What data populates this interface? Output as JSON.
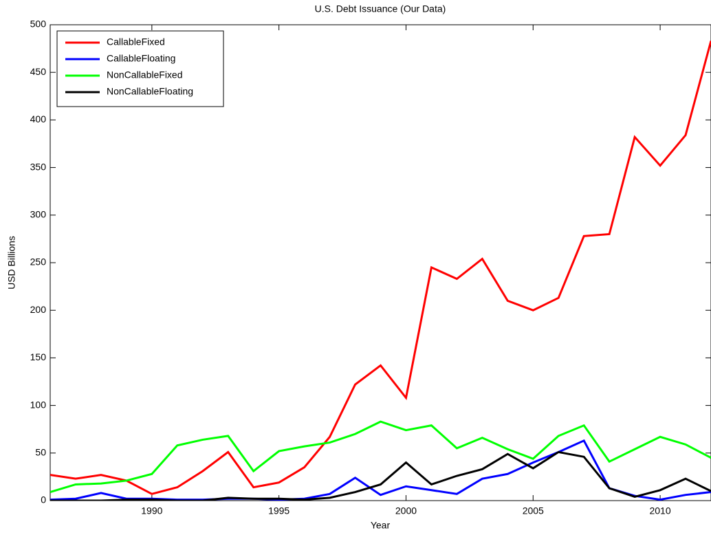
{
  "chart_data": {
    "type": "line",
    "title": "U.S. Debt Issuance (Our Data)",
    "x_label": "Year",
    "y_label": "USD Billions",
    "x": [
      1986,
      1987,
      1988,
      1989,
      1990,
      1991,
      1992,
      1993,
      1994,
      1995,
      1996,
      1997,
      1998,
      1999,
      2000,
      2001,
      2002,
      2003,
      2004,
      2005,
      2006,
      2007,
      2008,
      2009,
      2010,
      2011,
      2012
    ],
    "series": [
      {
        "name": "CallableFixed",
        "color": "#ff0000",
        "values": [
          27,
          23,
          27,
          21,
          7,
          14,
          31,
          51,
          14,
          19,
          35,
          67,
          122,
          142,
          108,
          245,
          233,
          254,
          210,
          200,
          213,
          278,
          280,
          382,
          352,
          384,
          483
        ]
      },
      {
        "name": "CallableFloating",
        "color": "#0000ff",
        "values": [
          1,
          2,
          8,
          2,
          2,
          1,
          1,
          2,
          2,
          1,
          2,
          7,
          24,
          6,
          15,
          11,
          7,
          23,
          28,
          40,
          51,
          63,
          13,
          5,
          1,
          6,
          9
        ]
      },
      {
        "name": "NonCallableFixed",
        "color": "#00ff00",
        "values": [
          9,
          17,
          18,
          21,
          28,
          58,
          64,
          68,
          31,
          52,
          57,
          61,
          70,
          83,
          74,
          79,
          55,
          66,
          54,
          44,
          68,
          79,
          41,
          54,
          67,
          59,
          45
        ]
      },
      {
        "name": "NonCallableFloating",
        "color": "#000000",
        "values": [
          0,
          0,
          0,
          1,
          1,
          0,
          0,
          3,
          2,
          2,
          1,
          3,
          9,
          17,
          40,
          17,
          26,
          33,
          49,
          34,
          51,
          46,
          13,
          4,
          11,
          23,
          10
        ]
      }
    ],
    "xlim": [
      1986,
      2012
    ],
    "ylim": [
      0,
      500
    ],
    "xticks": [
      1990,
      1995,
      2000,
      2005,
      2010
    ],
    "yticks": [
      0,
      50,
      100,
      150,
      200,
      250,
      300,
      350,
      400,
      450,
      500
    ],
    "grid": false,
    "legend": "upper-left"
  }
}
